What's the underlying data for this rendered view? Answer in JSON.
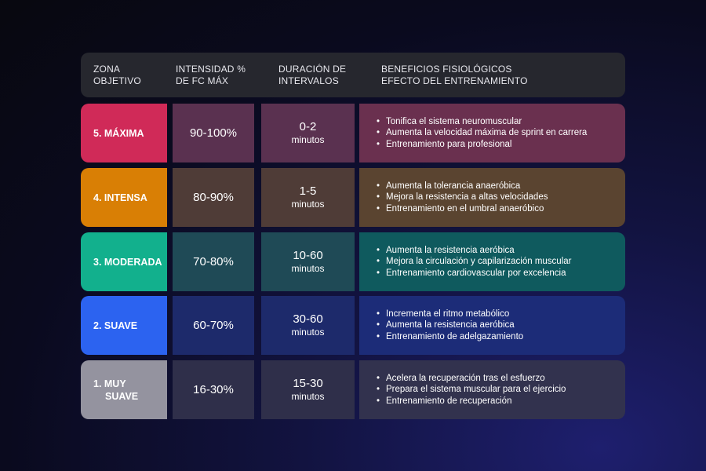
{
  "header": {
    "zone": [
      "ZONA",
      "OBJETIVO"
    ],
    "intensity": [
      "INTENSIDAD %",
      "DE FC MÁX"
    ],
    "duration": [
      "DURACIÓN DE",
      "INTERVALOS"
    ],
    "benefits": [
      "BENEFICIOS FISIOLÓGICOS",
      "EFECTO DEL ENTRENAMIENTO"
    ]
  },
  "rows": [
    {
      "zone": "5. MÁXIMA",
      "intensity": "90-100%",
      "duration": "0-2",
      "duration_unit": "minutos",
      "benefits": [
        "Tonifica el sistema neuromuscular",
        "Aumenta la velocidad máxima de sprint en carrera",
        "Entrenamiento para profesional"
      ],
      "colors": {
        "zone": "#d02a58",
        "mid": "#5a3150",
        "benefits": "#6a304f"
      }
    },
    {
      "zone": "4. INTENSA",
      "intensity": "80-90%",
      "duration": "1-5",
      "duration_unit": "minutos",
      "benefits": [
        "Aumenta la tolerancia anaeróbica",
        "Mejora la resistencia a altas velocidades",
        "Entrenamiento en el umbral anaeróbico"
      ],
      "colors": {
        "zone": "#d97f05",
        "mid": "#4f3c37",
        "benefits": "#5a4430"
      }
    },
    {
      "zone": "3. MODERADA",
      "intensity": "70-80%",
      "duration": "10-60",
      "duration_unit": "minutos",
      "benefits": [
        "Aumenta la resistencia aeróbica",
        "Mejora la circulación y capilarización muscular",
        "Entrenamiento cardiovascular por excelencia"
      ],
      "colors": {
        "zone": "#12b08d",
        "mid": "#1f4a56",
        "benefits": "#0f5a5e"
      }
    },
    {
      "zone": "2. SUAVE",
      "intensity": "60-70%",
      "duration": "30-60",
      "duration_unit": "minutos",
      "benefits": [
        "Incrementa el ritmo metabólico",
        "Aumenta la resistencia aeróbica",
        "Entrenamiento de adelgazamiento"
      ],
      "colors": {
        "zone": "#2c63f0",
        "mid": "#1d2a6b",
        "benefits": "#1c2c78"
      }
    },
    {
      "zone": [
        "1. MUY",
        "SUAVE"
      ],
      "intensity": "16-30%",
      "duration": "15-30",
      "duration_unit": "minutos",
      "benefits": [
        "Acelera la recuperación tras el esfuerzo",
        "Prepara el sistema muscular para el ejercicio",
        "Entrenamiento de recuperación"
      ],
      "colors": {
        "zone": "#94939f",
        "mid": "#2f2f4a",
        "benefits": "#32324e"
      }
    }
  ]
}
